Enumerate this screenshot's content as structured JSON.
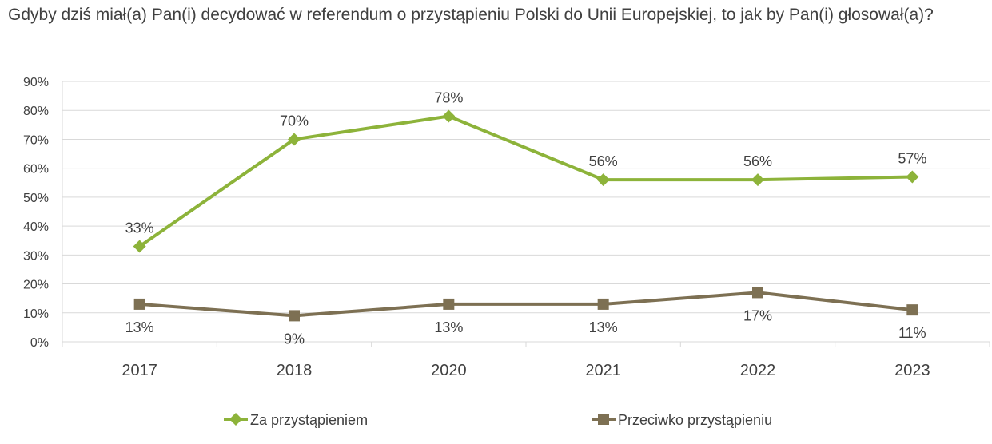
{
  "title": "Gdyby dziś miał(a) Pan(i) decydować w referendum o przystąpieniu Polski do Unii Europejskiej, to jak by Pan(i) głosował(a)?",
  "chart_data": {
    "type": "line",
    "title": "Gdyby dziś miał(a) Pan(i) decydować w referendum o przystąpieniu Polski do Unii Europejskiej, to jak by Pan(i) głosował(a)?",
    "categories": [
      "2017",
      "2018",
      "2020",
      "2021",
      "2022",
      "2023"
    ],
    "ylim": [
      0,
      90
    ],
    "yticks": [
      "0%",
      "10%",
      "20%",
      "30%",
      "40%",
      "50%",
      "60%",
      "70%",
      "80%",
      "90%"
    ],
    "grid": true,
    "legend_position": "bottom",
    "series": [
      {
        "name": "Za przystąpieniem",
        "color": "#8DB33A",
        "marker": "diamond",
        "values": [
          33,
          70,
          78,
          56,
          56,
          57
        ],
        "labels": [
          "33%",
          "70%",
          "78%",
          "56%",
          "56%",
          "57%"
        ]
      },
      {
        "name": "Przeciwko przystąpieniu",
        "color": "#7D7053",
        "marker": "square",
        "values": [
          13,
          9,
          13,
          13,
          17,
          11
        ],
        "labels": [
          "13%",
          "9%",
          "13%",
          "13%",
          "17%",
          "11%"
        ]
      }
    ]
  }
}
